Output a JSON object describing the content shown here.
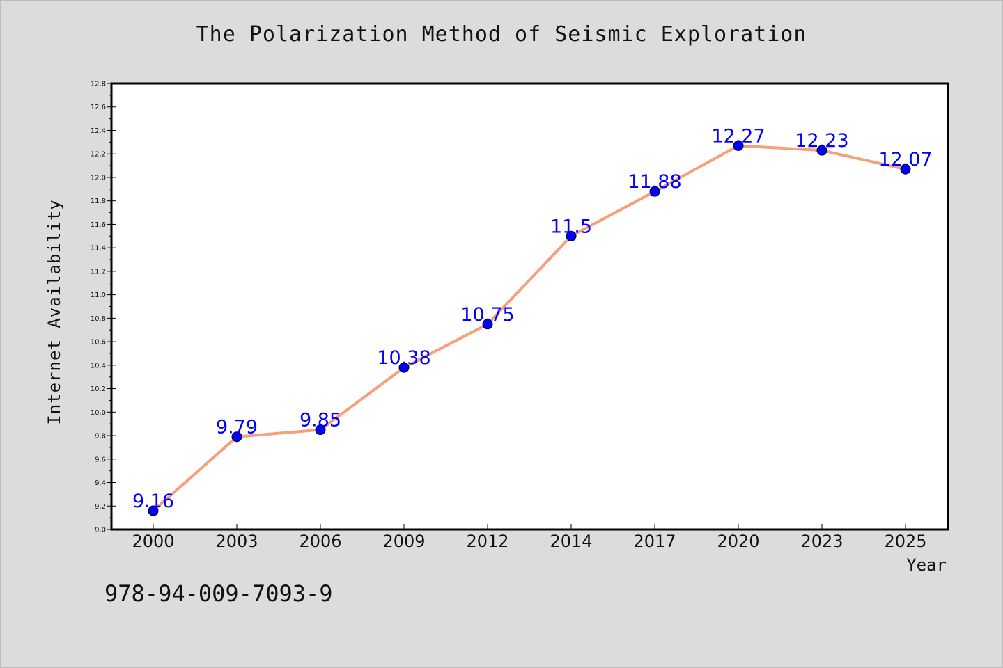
{
  "chart_data": {
    "type": "line",
    "title": "The Polarization Method of Seismic Exploration",
    "xlabel": "Year",
    "ylabel": "Internet Availability",
    "categories": [
      "2000",
      "2003",
      "2006",
      "2009",
      "2012",
      "2014",
      "2017",
      "2020",
      "2023",
      "2025"
    ],
    "series": [
      {
        "values": [
          9.16,
          9.79,
          9.85,
          10.38,
          10.75,
          11.5,
          11.88,
          12.27,
          12.23,
          12.07
        ]
      }
    ],
    "data_labels": [
      "9.16",
      "9.79",
      "9.85",
      "10.38",
      "10.75",
      "11.5",
      "11.88",
      "12.27",
      "12.23",
      "12.07"
    ],
    "ylim": [
      9.0,
      12.8
    ],
    "yticks": [
      "9.0",
      "9.2",
      "9.4",
      "9.6",
      "9.8",
      "10.0",
      "10.2",
      "10.4",
      "10.6",
      "10.8",
      "11.0",
      "11.2",
      "11.4",
      "11.6",
      "11.8",
      "12.0",
      "12.2",
      "12.4",
      "12.6",
      "12.8"
    ],
    "grid": false,
    "colors": {
      "line": "#f4a07a",
      "marker": "#0000ff",
      "label": "#0000ff",
      "background": "#dcdcdc",
      "plot_background": "#ffffff"
    }
  },
  "footer": {
    "code": "978-94-009-7093-9"
  }
}
